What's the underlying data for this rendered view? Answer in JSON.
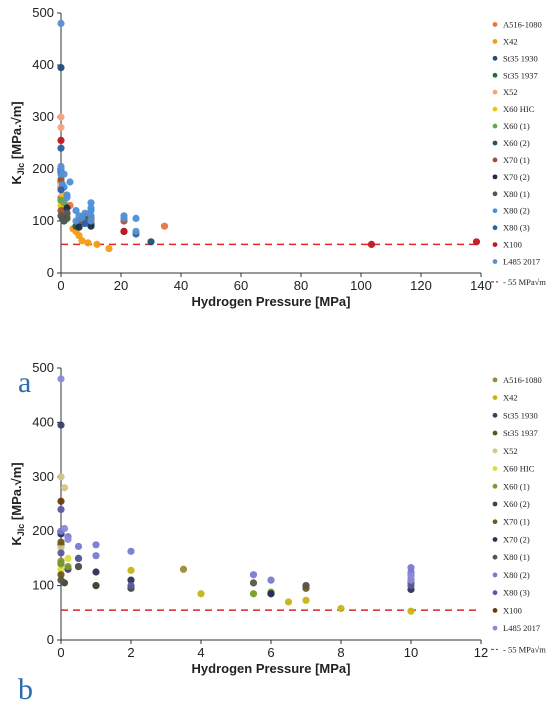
{
  "threshold_label": "55 MPa√m",
  "chart_data": [
    {
      "type": "scatter",
      "panel_label": "a",
      "xlabel": "Hydrogen Pressure [MPa]",
      "ylabel": "K",
      "ylabel_sub": "JIc",
      "ylabel_unit": " [MPa.√m]",
      "xlim": [
        0,
        140
      ],
      "ylim": [
        0,
        500
      ],
      "xticks": [
        0,
        20,
        40,
        60,
        80,
        100,
        120,
        140
      ],
      "yticks": [
        0,
        100,
        200,
        300,
        400,
        500
      ],
      "grid": false,
      "legend_position": "right",
      "threshold": 55,
      "series": [
        {
          "name": "A516-1080",
          "color": "#e8763a",
          "points": [
            [
              0,
              145
            ],
            [
              0,
              165
            ],
            [
              2,
              110
            ],
            [
              3,
              130
            ],
            [
              34.5,
              90
            ]
          ]
        },
        {
          "name": "X42",
          "color": "#f39c12",
          "points": [
            [
              4,
              85
            ],
            [
              5,
              80
            ],
            [
              6,
              72
            ],
            [
              7,
              62
            ],
            [
              9,
              58
            ],
            [
              12,
              55
            ],
            [
              16,
              47
            ]
          ]
        },
        {
          "name": "St35 1930",
          "color": "#1f4e79",
          "points": [
            [
              0,
              395
            ],
            [
              1,
              130
            ],
            [
              30,
              60
            ]
          ]
        },
        {
          "name": "St35 1937",
          "color": "#2e6b2e",
          "points": [
            [
              0,
              175
            ],
            [
              0,
              140
            ],
            [
              1,
              100
            ],
            [
              2,
              105
            ]
          ]
        },
        {
          "name": "X52",
          "color": "#f4a582",
          "points": [
            [
              0,
              300
            ],
            [
              0,
              280
            ],
            [
              0.5,
              150
            ],
            [
              0,
              170
            ]
          ]
        },
        {
          "name": "X60 HIC",
          "color": "#f1c40f",
          "points": [
            [
              0,
              130
            ],
            [
              1,
              150
            ]
          ]
        },
        {
          "name": "X60 (1)",
          "color": "#6aa84f",
          "points": [
            [
              0,
              140
            ],
            [
              1,
              135
            ],
            [
              6,
              95
            ]
          ]
        },
        {
          "name": "X60 (2)",
          "color": "#27574a",
          "points": [
            [
              0.5,
              105
            ],
            [
              5,
              90
            ],
            [
              6,
              100
            ],
            [
              8,
              110
            ],
            [
              10,
              95
            ]
          ]
        },
        {
          "name": "X70 (1)",
          "color": "#a0522d",
          "points": [
            [
              0,
              120
            ],
            [
              0,
              180
            ],
            [
              7,
              98
            ],
            [
              10,
              105
            ],
            [
              21,
              100
            ]
          ]
        },
        {
          "name": "X70 (2)",
          "color": "#1c2e4a",
          "points": [
            [
              0,
              195
            ],
            [
              2,
              125
            ],
            [
              6,
              88
            ],
            [
              10,
              90
            ]
          ]
        },
        {
          "name": "X80 (1)",
          "color": "#555555",
          "points": [
            [
              0,
              110
            ],
            [
              1,
              100
            ],
            [
              2,
              115
            ],
            [
              8,
              100
            ]
          ]
        },
        {
          "name": "X80 (2)",
          "color": "#4a90d9",
          "points": [
            [
              0,
              200
            ],
            [
              0,
              190
            ],
            [
              0.5,
              170
            ],
            [
              1,
              165
            ],
            [
              2,
              150
            ],
            [
              3,
              175
            ],
            [
              5,
              120
            ],
            [
              6,
              110
            ],
            [
              7,
              105
            ],
            [
              10,
              120
            ],
            [
              10,
              110
            ],
            [
              10,
              125
            ],
            [
              10,
              135
            ],
            [
              21,
              110
            ],
            [
              25,
              105
            ]
          ]
        },
        {
          "name": "X80 (3)",
          "color": "#2e5fa3",
          "points": [
            [
              0,
              240
            ],
            [
              0,
              160
            ],
            [
              8,
              95
            ],
            [
              21,
              80
            ],
            [
              25,
              75
            ]
          ]
        },
        {
          "name": "X100",
          "color": "#c0171d",
          "points": [
            [
              0,
              255
            ],
            [
              21,
              80
            ],
            [
              103.5,
              55
            ],
            [
              138.5,
              60
            ]
          ]
        },
        {
          "name": "L485 2017",
          "color": "#5b8fd1",
          "points": [
            [
              0,
              480
            ],
            [
              0,
              205
            ],
            [
              1,
              190
            ],
            [
              2,
              145
            ],
            [
              5,
              100
            ],
            [
              8,
              115
            ],
            [
              10,
              100
            ],
            [
              21,
              105
            ],
            [
              25,
              80
            ]
          ]
        }
      ]
    },
    {
      "type": "scatter",
      "panel_label": "b",
      "xlabel": "Hydrogen Pressure [MPa]",
      "ylabel": "K",
      "ylabel_sub": "JIc",
      "ylabel_unit": " [MPa.√m]",
      "xlim": [
        0,
        12
      ],
      "ylim": [
        0,
        500
      ],
      "xticks": [
        0,
        2,
        4,
        6,
        8,
        10,
        12
      ],
      "yticks": [
        0,
        100,
        200,
        300,
        400,
        500
      ],
      "grid": false,
      "legend_position": "right",
      "threshold": 55,
      "series": [
        {
          "name": "A516-1080",
          "color": "#9a8a3a",
          "points": [
            [
              0,
              145
            ],
            [
              3.5,
              130
            ],
            [
              7,
              100
            ]
          ]
        },
        {
          "name": "X42",
          "color": "#c6b414",
          "points": [
            [
              2,
              128
            ],
            [
              4,
              85
            ],
            [
              6.5,
              70
            ],
            [
              7,
              73
            ],
            [
              8,
              58
            ],
            [
              10,
              53
            ]
          ]
        },
        {
          "name": "St35 1930",
          "color": "#3a3f6e",
          "points": [
            [
              0,
              395
            ],
            [
              0.2,
              130
            ],
            [
              0.5,
              135
            ]
          ]
        },
        {
          "name": "St35 1937",
          "color": "#4f5a26",
          "points": [
            [
              0,
              175
            ],
            [
              0,
              140
            ],
            [
              0.5,
              150
            ],
            [
              1,
              100
            ]
          ]
        },
        {
          "name": "X52",
          "color": "#d2c48a",
          "points": [
            [
              0,
              300
            ],
            [
              0.1,
              280
            ],
            [
              0,
              170
            ]
          ]
        },
        {
          "name": "X60 HIC",
          "color": "#dede3a",
          "points": [
            [
              0,
              130
            ],
            [
              0.2,
              150
            ]
          ]
        },
        {
          "name": "X60 (1)",
          "color": "#7a9a2a",
          "points": [
            [
              0,
              140
            ],
            [
              0.2,
              135
            ],
            [
              6,
              88
            ],
            [
              5.5,
              85
            ]
          ]
        },
        {
          "name": "X60 (2)",
          "color": "#3b4a33",
          "points": [
            [
              0.1,
              105
            ],
            [
              1,
              100
            ],
            [
              2,
              95
            ],
            [
              6,
              85
            ]
          ]
        },
        {
          "name": "X70 (1)",
          "color": "#6f5a1a",
          "points": [
            [
              0,
              120
            ],
            [
              0,
              180
            ],
            [
              7,
              95
            ],
            [
              10,
              105
            ]
          ]
        },
        {
          "name": "X70 (2)",
          "color": "#2a2f55",
          "points": [
            [
              0,
              195
            ],
            [
              1,
              125
            ],
            [
              2,
              110
            ],
            [
              6,
              85
            ],
            [
              10,
              93
            ]
          ]
        },
        {
          "name": "X80 (1)",
          "color": "#55554a",
          "points": [
            [
              0,
              110
            ],
            [
              0.5,
              135
            ],
            [
              5.5,
              105
            ],
            [
              7,
              100
            ]
          ]
        },
        {
          "name": "X80 (2)",
          "color": "#7a7ad1",
          "points": [
            [
              0,
              200
            ],
            [
              0.2,
              190
            ],
            [
              0.5,
              172
            ],
            [
              1,
              175
            ],
            [
              1,
              155
            ],
            [
              2,
              163
            ],
            [
              5.5,
              120
            ],
            [
              6,
              110
            ],
            [
              10,
              120
            ],
            [
              10,
              112
            ],
            [
              10,
              125
            ],
            [
              10,
              133
            ]
          ]
        },
        {
          "name": "X80 (3)",
          "color": "#5a5aa0",
          "points": [
            [
              0,
              240
            ],
            [
              0,
              160
            ],
            [
              0.5,
              150
            ],
            [
              2,
              100
            ],
            [
              10,
              100
            ]
          ]
        },
        {
          "name": "X100",
          "color": "#6a3a10",
          "points": [
            [
              0,
              255
            ]
          ]
        },
        {
          "name": "L485 2017",
          "color": "#8a8ad8",
          "points": [
            [
              0,
              480
            ],
            [
              0.1,
              205
            ],
            [
              0.2,
              185
            ],
            [
              10,
              110
            ],
            [
              10,
              118
            ]
          ]
        }
      ]
    }
  ]
}
